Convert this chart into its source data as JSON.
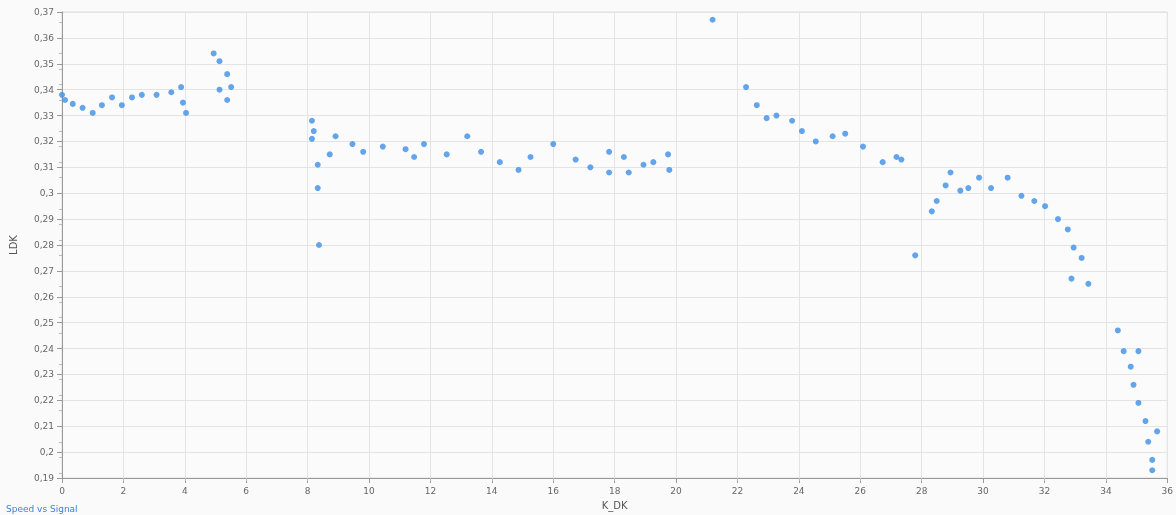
{
  "chart_data": {
    "type": "scatter",
    "xlabel": "K_DK",
    "ylabel": "LDK",
    "annotations": [
      "Speed vs Signal"
    ],
    "grid": true,
    "marker": "circle",
    "xlim": [
      0,
      36
    ],
    "xticks": [
      0,
      2,
      4,
      6,
      8,
      10,
      12,
      14,
      16,
      18,
      20,
      22,
      24,
      26,
      28,
      30,
      32,
      34,
      36
    ],
    "ylim": [
      0.19,
      0.37
    ],
    "yticks": [
      {
        "value": 0.19,
        "label": "0,19"
      },
      {
        "value": 0.2,
        "label": "0,2"
      },
      {
        "value": 0.21,
        "label": "0,21"
      },
      {
        "value": 0.22,
        "label": "0,22"
      },
      {
        "value": 0.23,
        "label": "0,23"
      },
      {
        "value": 0.24,
        "label": "0,24"
      },
      {
        "value": 0.25,
        "label": "0,25"
      },
      {
        "value": 0.26,
        "label": "0,26"
      },
      {
        "value": 0.27,
        "label": "0,27"
      },
      {
        "value": 0.28,
        "label": "0,28"
      },
      {
        "value": 0.29,
        "label": "0,29"
      },
      {
        "value": 0.3,
        "label": "0,3"
      },
      {
        "value": 0.31,
        "label": "0,31"
      },
      {
        "value": 0.32,
        "label": "0,32"
      },
      {
        "value": 0.33,
        "label": "0,33"
      },
      {
        "value": 0.34,
        "label": "0,34"
      },
      {
        "value": 0.35,
        "label": "0,35"
      },
      {
        "value": 0.36,
        "label": "0,36"
      },
      {
        "value": 0.37,
        "label": "0,37"
      }
    ],
    "series": [
      {
        "color": "#3d8fe6",
        "x": [
          0,
          0.1,
          0.35,
          0.67,
          1.0,
          1.3,
          1.63,
          1.95,
          2.28,
          2.6,
          3.08,
          3.56,
          3.88,
          3.94,
          4.04,
          4.94,
          5.13,
          5.38,
          5.13,
          5.51,
          5.38,
          8.14,
          8.14,
          8.33,
          8.33,
          8.37,
          8.2,
          8.72,
          8.91,
          9.46,
          9.81,
          10.45,
          11.19,
          11.47,
          11.79,
          12.53,
          13.2,
          13.65,
          14.26,
          14.87,
          15.26,
          16.0,
          16.73,
          17.21,
          17.82,
          17.82,
          18.3,
          18.46,
          18.94,
          19.26,
          19.74,
          19.78,
          21.19,
          22.28,
          22.63,
          22.95,
          23.27,
          23.78,
          24.1,
          24.55,
          25.1,
          25.51,
          26.09,
          26.73,
          27.18,
          27.34,
          27.79,
          28.33,
          28.49,
          28.78,
          28.94,
          29.26,
          29.52,
          29.87,
          30.26,
          30.8,
          31.25,
          31.67,
          32.02,
          32.44,
          32.76,
          32.95,
          33.21,
          32.88,
          33.43,
          34.39,
          34.58,
          35.06,
          34.81,
          34.9,
          35.06,
          35.29,
          35.67,
          35.38,
          35.51,
          35.51
        ],
        "values": [
          0.338,
          0.336,
          0.3345,
          0.333,
          0.331,
          0.334,
          0.337,
          0.334,
          0.337,
          0.338,
          0.338,
          0.339,
          0.341,
          0.335,
          0.331,
          0.354,
          0.351,
          0.346,
          0.34,
          0.341,
          0.336,
          0.328,
          0.321,
          0.311,
          0.302,
          0.28,
          0.324,
          0.315,
          0.322,
          0.319,
          0.316,
          0.318,
          0.317,
          0.314,
          0.319,
          0.315,
          0.322,
          0.316,
          0.312,
          0.309,
          0.314,
          0.319,
          0.313,
          0.31,
          0.316,
          0.308,
          0.314,
          0.308,
          0.311,
          0.312,
          0.315,
          0.309,
          0.367,
          0.341,
          0.334,
          0.329,
          0.33,
          0.328,
          0.324,
          0.32,
          0.322,
          0.323,
          0.318,
          0.312,
          0.314,
          0.313,
          0.276,
          0.293,
          0.297,
          0.303,
          0.308,
          0.301,
          0.302,
          0.306,
          0.302,
          0.306,
          0.299,
          0.297,
          0.295,
          0.29,
          0.286,
          0.279,
          0.275,
          0.267,
          0.265,
          0.247,
          0.239,
          0.239,
          0.233,
          0.226,
          0.219,
          0.212,
          0.208,
          0.204,
          0.197,
          0.193
        ]
      }
    ]
  }
}
